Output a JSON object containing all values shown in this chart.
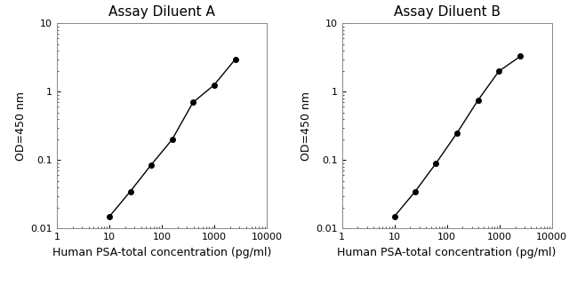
{
  "title_A": "Assay Diluent A",
  "title_B": "Assay Diluent B",
  "xlabel": "Human PSA-total concentration (pg/ml)",
  "ylabel": "OD=450 nm",
  "xlim": [
    1,
    10000
  ],
  "ylim": [
    0.01,
    10
  ],
  "x_A": [
    10,
    25,
    62,
    156,
    390,
    975,
    2500
  ],
  "y_A": [
    0.015,
    0.035,
    0.085,
    0.2,
    0.7,
    1.25,
    3.0
  ],
  "x_B": [
    10,
    25,
    62,
    156,
    390,
    975,
    2500
  ],
  "y_B": [
    0.015,
    0.035,
    0.09,
    0.25,
    0.75,
    2.0,
    3.3
  ],
  "line_color": "#000000",
  "marker_color": "#000000",
  "marker_style": "o",
  "marker_size": 4,
  "line_width": 1.0,
  "title_fontsize": 11,
  "label_fontsize": 9,
  "tick_fontsize": 8,
  "bg_color": "#ffffff",
  "xticks": [
    1,
    10,
    100,
    1000,
    10000
  ],
  "yticks": [
    0.01,
    0.1,
    1,
    10
  ]
}
